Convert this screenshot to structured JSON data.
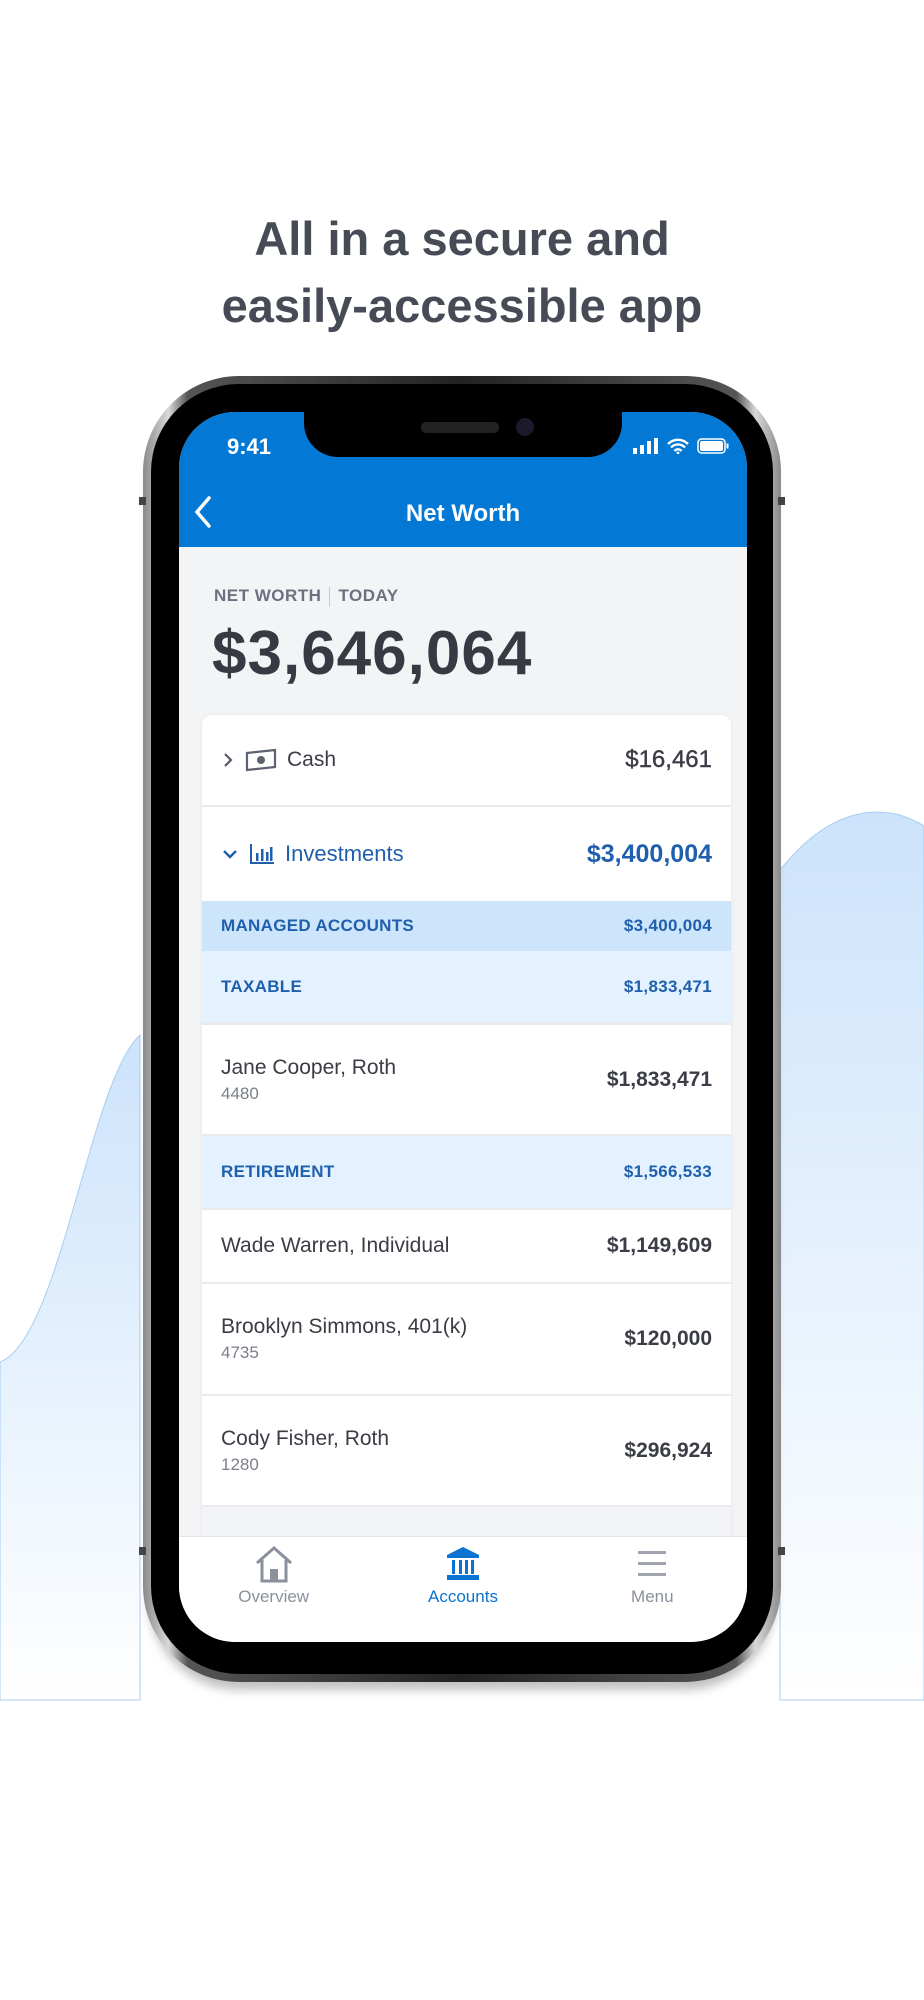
{
  "headline": [
    "All in a secure and",
    "easily-accessible app"
  ],
  "status_bar": {
    "time": "9:41"
  },
  "nav": {
    "title": "Net Worth",
    "back_icon": "chevron-left-icon"
  },
  "summary": {
    "label": "NET WORTH",
    "period": "TODAY",
    "total": "$3,646,064"
  },
  "categories": {
    "cash": {
      "label": "Cash",
      "amount": "$16,461",
      "icon": "cash-icon"
    },
    "investments": {
      "label": "Investments",
      "amount": "$3,400,004",
      "icon": "bar-chart-icon"
    }
  },
  "managed": {
    "label": "MANAGED ACCOUNTS",
    "amount": "$3,400,004"
  },
  "taxable": {
    "label": "TAXABLE",
    "amount": "$1,833,471",
    "accounts": [
      {
        "name": "Jane Cooper, Roth",
        "number": "4480",
        "amount": "$1,833,471"
      }
    ]
  },
  "retirement": {
    "label": "RETIREMENT",
    "amount": "$1,566,533",
    "accounts": [
      {
        "name": "Wade Warren, Individual",
        "number": "",
        "amount": "$1,149,609"
      },
      {
        "name": "Brooklyn Simmons, 401(k)",
        "number": "4735",
        "amount": "$120,000"
      },
      {
        "name": "Cody Fisher, Roth",
        "number": "1280",
        "amount": "$296,924"
      }
    ]
  },
  "tabs": [
    {
      "label": "Overview",
      "icon": "home-icon"
    },
    {
      "label": "Accounts",
      "icon": "bank-icon",
      "active": true
    },
    {
      "label": "Menu",
      "icon": "menu-icon"
    }
  ],
  "colors": {
    "brand": "#0378d4",
    "accent_text": "#1f5fad",
    "managed_bg": "#cde5fb",
    "group_bg": "#e3f2fe"
  }
}
